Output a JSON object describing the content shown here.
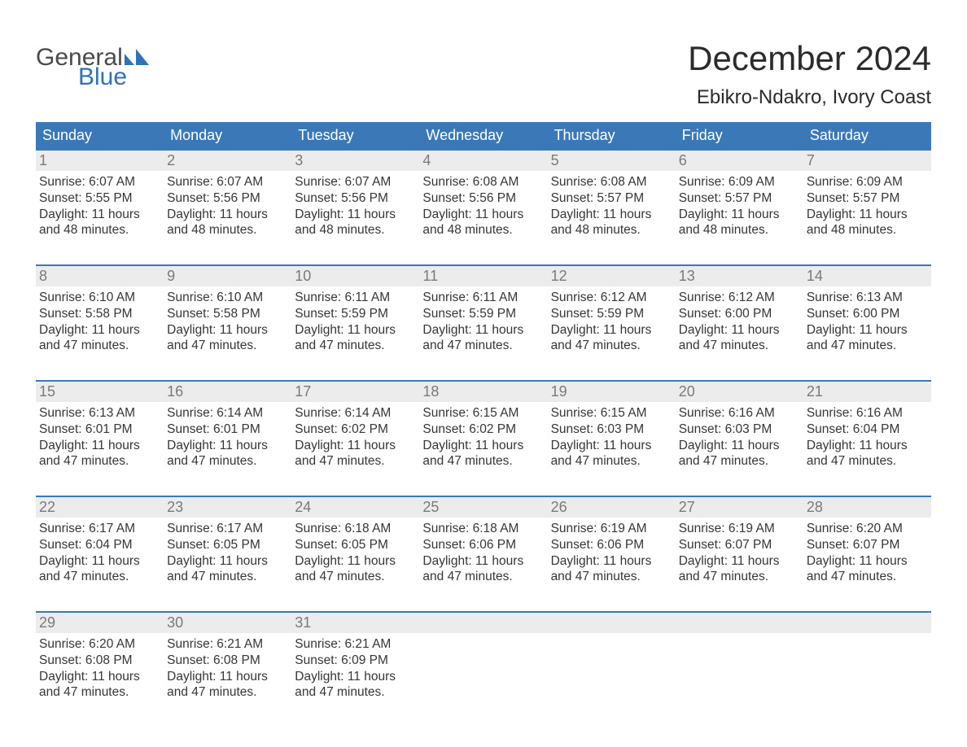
{
  "logo": {
    "line1": "General",
    "line2": "Blue",
    "flag_color": "#2f72b8",
    "text_gray": "#4a4a4a"
  },
  "title": "December 2024",
  "location": "Ebikro-Ndakro, Ivory Coast",
  "colors": {
    "header_bg": "#3b78b8",
    "header_text": "#ffffff",
    "week_border": "#3b78b8",
    "daynum_bg": "#ececec",
    "daynum_text": "#7a7a7a",
    "body_text": "#363636",
    "background": "#ffffff"
  },
  "typography": {
    "title_fontsize": 42,
    "location_fontsize": 24,
    "dayheader_fontsize": 18,
    "daynum_fontsize": 18,
    "body_fontsize": 15.5
  },
  "day_names": [
    "Sunday",
    "Monday",
    "Tuesday",
    "Wednesday",
    "Thursday",
    "Friday",
    "Saturday"
  ],
  "weeks": [
    [
      {
        "n": "1",
        "sunrise": "Sunrise: 6:07 AM",
        "sunset": "Sunset: 5:55 PM",
        "d1": "Daylight: 11 hours",
        "d2": "and 48 minutes."
      },
      {
        "n": "2",
        "sunrise": "Sunrise: 6:07 AM",
        "sunset": "Sunset: 5:56 PM",
        "d1": "Daylight: 11 hours",
        "d2": "and 48 minutes."
      },
      {
        "n": "3",
        "sunrise": "Sunrise: 6:07 AM",
        "sunset": "Sunset: 5:56 PM",
        "d1": "Daylight: 11 hours",
        "d2": "and 48 minutes."
      },
      {
        "n": "4",
        "sunrise": "Sunrise: 6:08 AM",
        "sunset": "Sunset: 5:56 PM",
        "d1": "Daylight: 11 hours",
        "d2": "and 48 minutes."
      },
      {
        "n": "5",
        "sunrise": "Sunrise: 6:08 AM",
        "sunset": "Sunset: 5:57 PM",
        "d1": "Daylight: 11 hours",
        "d2": "and 48 minutes."
      },
      {
        "n": "6",
        "sunrise": "Sunrise: 6:09 AM",
        "sunset": "Sunset: 5:57 PM",
        "d1": "Daylight: 11 hours",
        "d2": "and 48 minutes."
      },
      {
        "n": "7",
        "sunrise": "Sunrise: 6:09 AM",
        "sunset": "Sunset: 5:57 PM",
        "d1": "Daylight: 11 hours",
        "d2": "and 48 minutes."
      }
    ],
    [
      {
        "n": "8",
        "sunrise": "Sunrise: 6:10 AM",
        "sunset": "Sunset: 5:58 PM",
        "d1": "Daylight: 11 hours",
        "d2": "and 47 minutes."
      },
      {
        "n": "9",
        "sunrise": "Sunrise: 6:10 AM",
        "sunset": "Sunset: 5:58 PM",
        "d1": "Daylight: 11 hours",
        "d2": "and 47 minutes."
      },
      {
        "n": "10",
        "sunrise": "Sunrise: 6:11 AM",
        "sunset": "Sunset: 5:59 PM",
        "d1": "Daylight: 11 hours",
        "d2": "and 47 minutes."
      },
      {
        "n": "11",
        "sunrise": "Sunrise: 6:11 AM",
        "sunset": "Sunset: 5:59 PM",
        "d1": "Daylight: 11 hours",
        "d2": "and 47 minutes."
      },
      {
        "n": "12",
        "sunrise": "Sunrise: 6:12 AM",
        "sunset": "Sunset: 5:59 PM",
        "d1": "Daylight: 11 hours",
        "d2": "and 47 minutes."
      },
      {
        "n": "13",
        "sunrise": "Sunrise: 6:12 AM",
        "sunset": "Sunset: 6:00 PM",
        "d1": "Daylight: 11 hours",
        "d2": "and 47 minutes."
      },
      {
        "n": "14",
        "sunrise": "Sunrise: 6:13 AM",
        "sunset": "Sunset: 6:00 PM",
        "d1": "Daylight: 11 hours",
        "d2": "and 47 minutes."
      }
    ],
    [
      {
        "n": "15",
        "sunrise": "Sunrise: 6:13 AM",
        "sunset": "Sunset: 6:01 PM",
        "d1": "Daylight: 11 hours",
        "d2": "and 47 minutes."
      },
      {
        "n": "16",
        "sunrise": "Sunrise: 6:14 AM",
        "sunset": "Sunset: 6:01 PM",
        "d1": "Daylight: 11 hours",
        "d2": "and 47 minutes."
      },
      {
        "n": "17",
        "sunrise": "Sunrise: 6:14 AM",
        "sunset": "Sunset: 6:02 PM",
        "d1": "Daylight: 11 hours",
        "d2": "and 47 minutes."
      },
      {
        "n": "18",
        "sunrise": "Sunrise: 6:15 AM",
        "sunset": "Sunset: 6:02 PM",
        "d1": "Daylight: 11 hours",
        "d2": "and 47 minutes."
      },
      {
        "n": "19",
        "sunrise": "Sunrise: 6:15 AM",
        "sunset": "Sunset: 6:03 PM",
        "d1": "Daylight: 11 hours",
        "d2": "and 47 minutes."
      },
      {
        "n": "20",
        "sunrise": "Sunrise: 6:16 AM",
        "sunset": "Sunset: 6:03 PM",
        "d1": "Daylight: 11 hours",
        "d2": "and 47 minutes."
      },
      {
        "n": "21",
        "sunrise": "Sunrise: 6:16 AM",
        "sunset": "Sunset: 6:04 PM",
        "d1": "Daylight: 11 hours",
        "d2": "and 47 minutes."
      }
    ],
    [
      {
        "n": "22",
        "sunrise": "Sunrise: 6:17 AM",
        "sunset": "Sunset: 6:04 PM",
        "d1": "Daylight: 11 hours",
        "d2": "and 47 minutes."
      },
      {
        "n": "23",
        "sunrise": "Sunrise: 6:17 AM",
        "sunset": "Sunset: 6:05 PM",
        "d1": "Daylight: 11 hours",
        "d2": "and 47 minutes."
      },
      {
        "n": "24",
        "sunrise": "Sunrise: 6:18 AM",
        "sunset": "Sunset: 6:05 PM",
        "d1": "Daylight: 11 hours",
        "d2": "and 47 minutes."
      },
      {
        "n": "25",
        "sunrise": "Sunrise: 6:18 AM",
        "sunset": "Sunset: 6:06 PM",
        "d1": "Daylight: 11 hours",
        "d2": "and 47 minutes."
      },
      {
        "n": "26",
        "sunrise": "Sunrise: 6:19 AM",
        "sunset": "Sunset: 6:06 PM",
        "d1": "Daylight: 11 hours",
        "d2": "and 47 minutes."
      },
      {
        "n": "27",
        "sunrise": "Sunrise: 6:19 AM",
        "sunset": "Sunset: 6:07 PM",
        "d1": "Daylight: 11 hours",
        "d2": "and 47 minutes."
      },
      {
        "n": "28",
        "sunrise": "Sunrise: 6:20 AM",
        "sunset": "Sunset: 6:07 PM",
        "d1": "Daylight: 11 hours",
        "d2": "and 47 minutes."
      }
    ],
    [
      {
        "n": "29",
        "sunrise": "Sunrise: 6:20 AM",
        "sunset": "Sunset: 6:08 PM",
        "d1": "Daylight: 11 hours",
        "d2": "and 47 minutes."
      },
      {
        "n": "30",
        "sunrise": "Sunrise: 6:21 AM",
        "sunset": "Sunset: 6:08 PM",
        "d1": "Daylight: 11 hours",
        "d2": "and 47 minutes."
      },
      {
        "n": "31",
        "sunrise": "Sunrise: 6:21 AM",
        "sunset": "Sunset: 6:09 PM",
        "d1": "Daylight: 11 hours",
        "d2": "and 47 minutes."
      },
      null,
      null,
      null,
      null
    ]
  ]
}
